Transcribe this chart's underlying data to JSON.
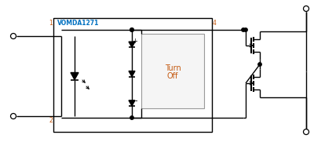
{
  "bg_color": "#ffffff",
  "line_color": "#000000",
  "label_blue": "#0070c0",
  "label_orange": "#c55a11",
  "title": "VOMDA1271",
  "turn_off": [
    "Turn",
    "Off"
  ],
  "pin1": "1",
  "pin2": "2",
  "pin4": "4",
  "figsize": [
    4.0,
    1.86
  ],
  "dpi": 100
}
